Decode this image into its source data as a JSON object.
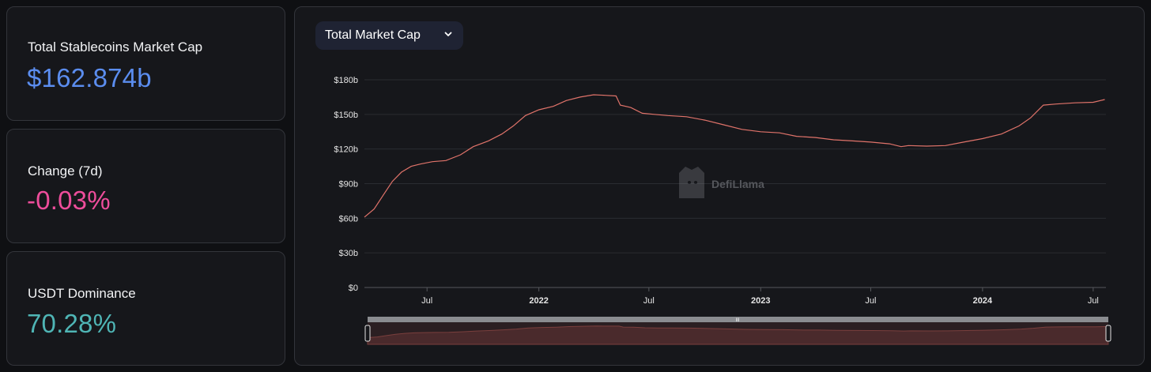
{
  "stats": {
    "market_cap": {
      "label": "Total Stablecoins Market Cap",
      "value": "$162.874b",
      "color": "#5b8def"
    },
    "change_7d": {
      "label": "Change (7d)",
      "value": "-0.03%",
      "color": "#ee4d9b"
    },
    "usdt_dominance": {
      "label": "USDT Dominance",
      "value": "70.28%",
      "color": "#4fb5b5"
    }
  },
  "chart": {
    "dropdown_label": "Total Market Cap",
    "watermark": "DefiLlama",
    "line_color": "#e0736a",
    "slider_handle_mark": "III"
  },
  "chart_data": {
    "type": "line",
    "title": "",
    "xlabel": "",
    "ylabel": "",
    "ylim": [
      0,
      180
    ],
    "y_unit": "billions USD",
    "y_ticks": [
      "$0",
      "$30b",
      "$60b",
      "$90b",
      "$120b",
      "$150b",
      "$180b"
    ],
    "x_ticks": [
      {
        "date": "2021-07-01",
        "label": "Jul",
        "bold": false
      },
      {
        "date": "2022-01-01",
        "label": "2022",
        "bold": true
      },
      {
        "date": "2022-07-01",
        "label": "Jul",
        "bold": false
      },
      {
        "date": "2023-01-01",
        "label": "2023",
        "bold": true
      },
      {
        "date": "2023-07-01",
        "label": "Jul",
        "bold": false
      },
      {
        "date": "2024-01-01",
        "label": "2024",
        "bold": true
      },
      {
        "date": "2024-07-01",
        "label": "Jul",
        "bold": false
      }
    ],
    "x_range": [
      "2021-03-20",
      "2024-07-42"
    ],
    "grid": true,
    "series": [
      {
        "name": "",
        "points": [
          [
            "2021-03-20",
            61
          ],
          [
            "2021-04-05",
            68
          ],
          [
            "2021-04-20",
            80
          ],
          [
            "2021-05-05",
            92
          ],
          [
            "2021-05-20",
            100
          ],
          [
            "2021-06-05",
            105
          ],
          [
            "2021-06-20",
            107
          ],
          [
            "2021-07-10",
            109
          ],
          [
            "2021-08-01",
            110
          ],
          [
            "2021-08-25",
            115
          ],
          [
            "2021-09-15",
            122
          ],
          [
            "2021-10-10",
            127
          ],
          [
            "2021-11-01",
            133
          ],
          [
            "2021-11-20",
            140
          ],
          [
            "2021-12-10",
            149
          ],
          [
            "2022-01-01",
            154
          ],
          [
            "2022-01-25",
            157
          ],
          [
            "2022-02-15",
            162
          ],
          [
            "2022-03-10",
            165
          ],
          [
            "2022-04-01",
            167
          ],
          [
            "2022-04-20",
            166.5
          ],
          [
            "2022-05-08",
            166
          ],
          [
            "2022-05-15",
            158
          ],
          [
            "2022-06-01",
            156
          ],
          [
            "2022-06-20",
            151
          ],
          [
            "2022-07-10",
            150
          ],
          [
            "2022-08-01",
            149
          ],
          [
            "2022-09-01",
            148
          ],
          [
            "2022-10-01",
            145
          ],
          [
            "2022-11-01",
            141
          ],
          [
            "2022-12-01",
            137
          ],
          [
            "2023-01-01",
            135
          ],
          [
            "2023-02-01",
            134
          ],
          [
            "2023-03-01",
            131
          ],
          [
            "2023-04-01",
            130
          ],
          [
            "2023-05-01",
            128
          ],
          [
            "2023-06-01",
            127
          ],
          [
            "2023-07-01",
            126
          ],
          [
            "2023-08-01",
            124.5
          ],
          [
            "2023-08-20",
            122
          ],
          [
            "2023-09-01",
            123
          ],
          [
            "2023-10-01",
            122.5
          ],
          [
            "2023-11-01",
            123
          ],
          [
            "2023-12-01",
            126
          ],
          [
            "2024-01-01",
            129
          ],
          [
            "2024-02-01",
            133
          ],
          [
            "2024-03-01",
            140
          ],
          [
            "2024-03-20",
            147
          ],
          [
            "2024-04-10",
            158
          ],
          [
            "2024-05-01",
            159
          ],
          [
            "2024-06-01",
            160
          ],
          [
            "2024-07-01",
            160.5
          ],
          [
            "2024-07-20",
            162.9
          ]
        ]
      }
    ]
  }
}
